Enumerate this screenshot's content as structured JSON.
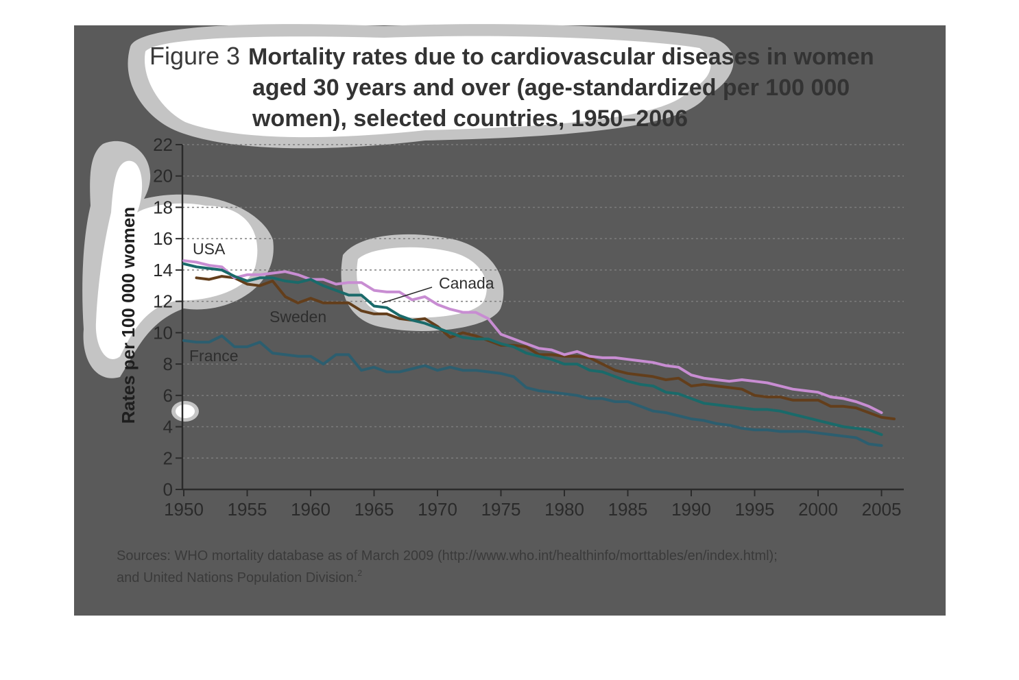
{
  "figure": {
    "prefix": "Figure 3",
    "title_lines": [
      "Mortality rates due to cardiovascular diseases in women",
      "aged 30 years and over (age-standardized per 100 000",
      "women), selected countries, 1950–2006"
    ],
    "source_lines": [
      "Sources: WHO mortality database as of March 2009 (http://www.who.int/healthinfo/morttables/en/index.html);",
      "and United Nations Population Division."
    ],
    "source_footnote": "2"
  },
  "colors": {
    "panel": "#5a5a5a",
    "grid": "#7d7d7d",
    "axis": "#2a2a2a"
  },
  "chart_data": {
    "type": "line",
    "title": "Mortality rates due to cardiovascular diseases in women aged 30 years and over (age-standardized per 100 000 women), selected countries, 1950–2006",
    "xlabel": "",
    "ylabel": "Rates per 100 000 women",
    "xlim": [
      1950,
      2007
    ],
    "ylim": [
      0,
      22
    ],
    "x_ticks": [
      1950,
      1955,
      1960,
      1965,
      1970,
      1975,
      1980,
      1985,
      1990,
      1995,
      2000,
      2005
    ],
    "y_ticks": [
      0,
      2,
      4,
      6,
      8,
      10,
      12,
      14,
      16,
      18,
      20,
      22
    ],
    "grid": "horizontal dotted",
    "series": [
      {
        "name": "France",
        "color": "#2c5e6f",
        "x": [
          1950,
          1951,
          1952,
          1953,
          1954,
          1955,
          1956,
          1957,
          1958,
          1959,
          1960,
          1961,
          1962,
          1963,
          1964,
          1965,
          1966,
          1967,
          1968,
          1969,
          1970,
          1971,
          1972,
          1973,
          1974,
          1975,
          1976,
          1977,
          1978,
          1979,
          1980,
          1981,
          1982,
          1983,
          1984,
          1985,
          1986,
          1987,
          1988,
          1989,
          1990,
          1991,
          1992,
          1993,
          1994,
          1995,
          1996,
          1997,
          1998,
          1999,
          2000,
          2001,
          2002,
          2003,
          2004,
          2005
        ],
        "values": [
          9.5,
          9.4,
          9.4,
          9.8,
          9.1,
          9.1,
          9.4,
          8.7,
          8.6,
          8.5,
          8.5,
          8.0,
          8.6,
          8.6,
          7.6,
          7.8,
          7.5,
          7.5,
          7.7,
          7.9,
          7.6,
          7.8,
          7.6,
          7.6,
          7.5,
          7.4,
          7.2,
          6.5,
          6.3,
          6.2,
          6.1,
          6.0,
          5.8,
          5.8,
          5.6,
          5.6,
          5.3,
          5.0,
          4.9,
          4.7,
          4.5,
          4.4,
          4.2,
          4.1,
          3.9,
          3.8,
          3.8,
          3.7,
          3.7,
          3.7,
          3.6,
          3.5,
          3.4,
          3.3,
          2.9,
          2.8
        ]
      },
      {
        "name": "Sweden",
        "color": "#633e1b",
        "x": [
          1951,
          1952,
          1953,
          1954,
          1955,
          1956,
          1957,
          1958,
          1959,
          1960,
          1961,
          1962,
          1963,
          1964,
          1965,
          1966,
          1967,
          1968,
          1969,
          1970,
          1971,
          1972,
          1973,
          1974,
          1975,
          1976,
          1977,
          1978,
          1979,
          1980,
          1981,
          1982,
          1983,
          1984,
          1985,
          1986,
          1987,
          1988,
          1989,
          1990,
          1991,
          1992,
          1993,
          1994,
          1995,
          1996,
          1997,
          1998,
          1999,
          2000,
          2001,
          2002,
          2003,
          2004,
          2005,
          2006
        ],
        "values": [
          13.5,
          13.4,
          13.6,
          13.5,
          13.1,
          13.0,
          13.3,
          12.3,
          11.9,
          12.2,
          11.9,
          11.9,
          11.9,
          11.4,
          11.2,
          11.2,
          10.9,
          10.8,
          10.9,
          10.4,
          9.7,
          10.0,
          9.8,
          9.5,
          9.2,
          9.2,
          9.1,
          8.6,
          8.6,
          8.5,
          8.5,
          8.4,
          8.0,
          7.6,
          7.4,
          7.3,
          7.2,
          7.0,
          7.1,
          6.6,
          6.7,
          6.6,
          6.5,
          6.4,
          6.0,
          5.9,
          5.9,
          5.7,
          5.7,
          5.7,
          5.3,
          5.3,
          5.2,
          4.9,
          4.6,
          4.5
        ]
      },
      {
        "name": "Canada",
        "color": "#c88dd2",
        "x": [
          1950,
          1951,
          1952,
          1953,
          1954,
          1955,
          1956,
          1957,
          1958,
          1959,
          1960,
          1961,
          1962,
          1963,
          1964,
          1965,
          1966,
          1967,
          1968,
          1969,
          1970,
          1971,
          1972,
          1973,
          1974,
          1975,
          1976,
          1977,
          1978,
          1979,
          1980,
          1981,
          1982,
          1983,
          1984,
          1985,
          1986,
          1987,
          1988,
          1989,
          1990,
          1991,
          1992,
          1993,
          1994,
          1995,
          1996,
          1997,
          1998,
          1999,
          2000,
          2001,
          2002,
          2003,
          2004,
          2005
        ],
        "values": [
          14.6,
          14.5,
          14.3,
          14.2,
          13.5,
          13.7,
          13.7,
          13.8,
          13.9,
          13.7,
          13.4,
          13.4,
          13.1,
          13.2,
          13.2,
          12.7,
          12.6,
          12.6,
          12.1,
          12.3,
          11.8,
          11.5,
          11.3,
          11.3,
          10.9,
          9.9,
          9.6,
          9.3,
          9.0,
          8.9,
          8.6,
          8.8,
          8.5,
          8.4,
          8.4,
          8.3,
          8.2,
          8.1,
          7.9,
          7.8,
          7.3,
          7.1,
          7.0,
          6.9,
          7.0,
          6.9,
          6.8,
          6.6,
          6.4,
          6.3,
          6.2,
          5.9,
          5.8,
          5.6,
          5.3,
          4.9
        ]
      },
      {
        "name": "USA",
        "color": "#1a6a6a",
        "x": [
          1950,
          1951,
          1952,
          1953,
          1954,
          1955,
          1956,
          1957,
          1958,
          1959,
          1960,
          1961,
          1962,
          1963,
          1964,
          1965,
          1966,
          1967,
          1968,
          1969,
          1970,
          1971,
          1972,
          1973,
          1974,
          1975,
          1976,
          1977,
          1978,
          1979,
          1980,
          1981,
          1982,
          1983,
          1984,
          1985,
          1986,
          1987,
          1988,
          1989,
          1990,
          1991,
          1992,
          1993,
          1994,
          1995,
          1996,
          1997,
          1998,
          1999,
          2000,
          2001,
          2002,
          2003,
          2004,
          2005
        ],
        "values": [
          14.4,
          14.2,
          14.1,
          14.0,
          13.6,
          13.3,
          13.5,
          13.5,
          13.3,
          13.2,
          13.4,
          13.0,
          12.7,
          12.4,
          12.4,
          11.7,
          11.6,
          11.1,
          10.8,
          10.6,
          10.3,
          10.0,
          9.7,
          9.6,
          9.6,
          9.3,
          9.1,
          8.7,
          8.5,
          8.3,
          8.0,
          8.0,
          7.6,
          7.5,
          7.2,
          6.9,
          6.7,
          6.6,
          6.2,
          6.1,
          5.8,
          5.5,
          5.4,
          5.3,
          5.2,
          5.1,
          5.1,
          5.0,
          4.8,
          4.6,
          4.4,
          4.2,
          4.0,
          3.9,
          3.8,
          3.5
        ]
      }
    ],
    "series_labels": [
      "USA",
      "Canada",
      "Sweden",
      "France"
    ]
  }
}
